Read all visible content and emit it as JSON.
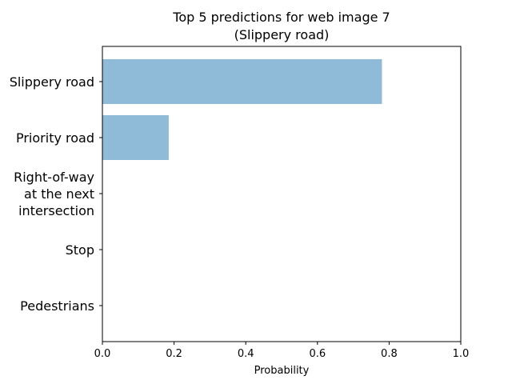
{
  "chart_data": {
    "type": "bar",
    "orientation": "horizontal",
    "title_lines": [
      "Top 5 predictions for web image 7",
      "(Slippery road)"
    ],
    "xlabel": "Probability",
    "ylabel": "",
    "xlim": [
      0.0,
      1.0
    ],
    "x_ticks": [
      "0.0",
      "0.2",
      "0.4",
      "0.6",
      "0.8",
      "1.0"
    ],
    "x_tick_values": [
      0.0,
      0.2,
      0.4,
      0.6,
      0.8,
      1.0
    ],
    "categories": [
      [
        "Slippery road"
      ],
      [
        "Priority road"
      ],
      [
        "Right-of-way",
        "at the next",
        "intersection"
      ],
      [
        "Stop"
      ],
      [
        "Pedestrians"
      ]
    ],
    "values": [
      0.78,
      0.185,
      0.0,
      0.0,
      0.0
    ],
    "bar_color": "#8fbbd9",
    "grid": false,
    "legend": "none"
  }
}
